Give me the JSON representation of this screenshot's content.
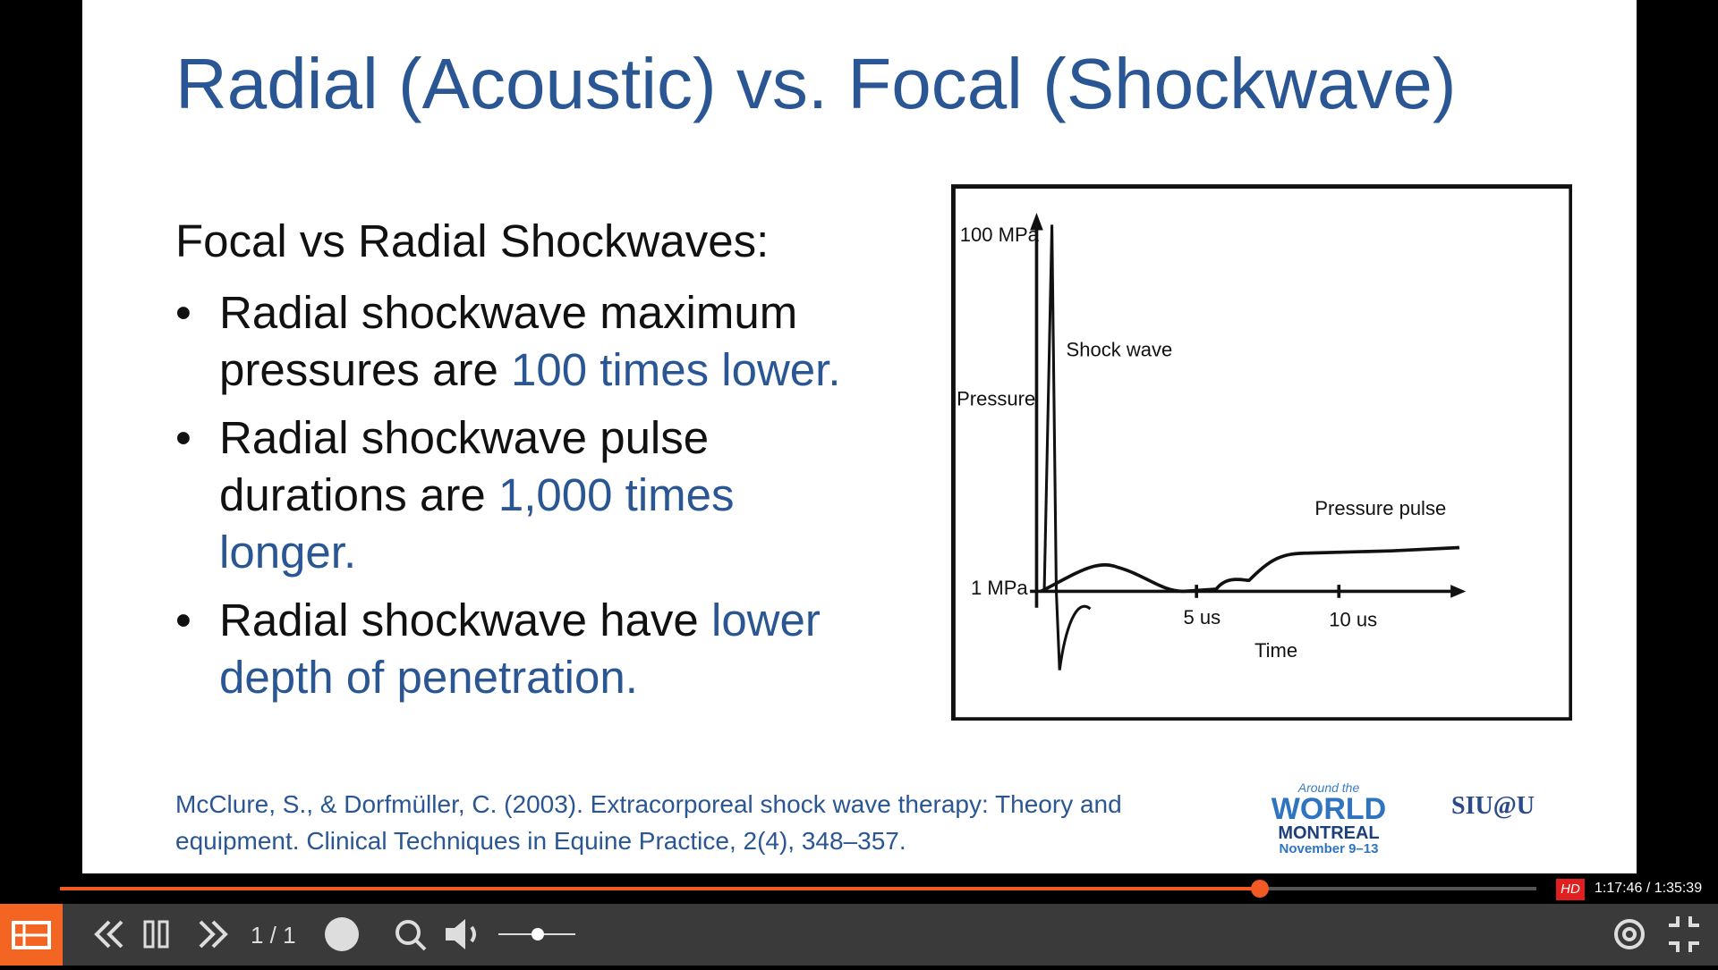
{
  "slide": {
    "title": "Radial (Acoustic) vs. Focal (Shockwave)",
    "heading": "Focal vs Radial Shockwaves:",
    "bullets": [
      {
        "text": "Radial shockwave maximum pressures are",
        "highlight": "100 times lower."
      },
      {
        "text": "Radial shockwave pulse durations are",
        "highlight": "1,000 times longer."
      },
      {
        "text": "Radial shockwave have",
        "highlight": "lower depth of penetration."
      }
    ],
    "figure": {
      "y_max": "100 MPa",
      "y_axis": "Pressure",
      "y_min": "1 MPa",
      "shock_wave": "Shock wave",
      "pressure_pulse": "Pressure pulse",
      "x_tick_1": "5 us",
      "x_tick_2": "10 us",
      "x_axis": "Time"
    },
    "citation": [
      "McClure, S., & Dorfmüller, C. (2003). Extracorporeal shock wave therapy: Theory and",
      "equipment. Clinical Techniques in Equine Practice, 2(4), 348–357."
    ],
    "logo_world": {
      "top": "Around the",
      "main": "WORLD",
      "city": "MONTREAL",
      "dates": "November 9–13"
    },
    "logo_siu": "SIU@U"
  },
  "player": {
    "quality": "HD",
    "time": "1:17:46 / 1:35:39",
    "page": "1 / 1"
  }
}
